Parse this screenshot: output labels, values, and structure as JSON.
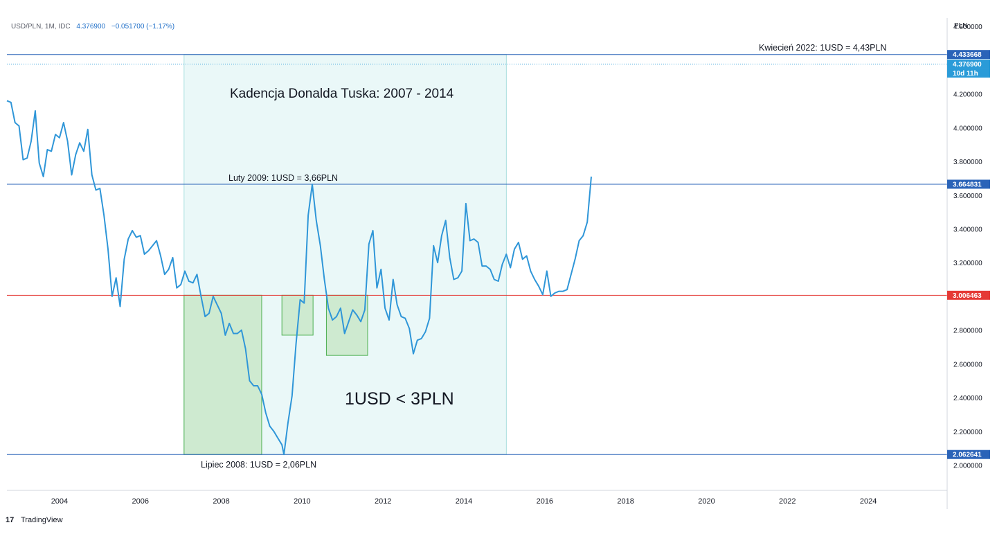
{
  "header": {
    "symbol": "USD/PLN, 1M, IDC",
    "last": "4.376900",
    "change": "−0.051700 (−1.17%)"
  },
  "axis": {
    "unit_label": "PLN"
  },
  "brand": {
    "name": "TradingView"
  },
  "colors": {
    "line": "#2f96d8",
    "hline_blue": "#2a63b8",
    "hline_red": "#e53935",
    "zone_fill": "#eaf8f8",
    "zone_border": "#a8dede",
    "box_fill": "#c9e8c9",
    "box_border": "#4caf50",
    "label_blue": "#2a63b8",
    "label_light": "#2a9bd8",
    "label_red": "#e53935"
  },
  "annotations": {
    "tusk": "Kadencja Donalda Tuska: 2007 - 2014",
    "feb2009": "Luty 2009: 1USD = 3,66PLN",
    "jul2008": "Lipiec 2008: 1USD = 2,06PLN",
    "apr2022": "Kwiecień 2022: 1USD = 4,43PLN",
    "below3": "1USD < 3PLN"
  },
  "price_labels": [
    {
      "id": "high",
      "text": "4.433668",
      "value": 4.433668,
      "color": "#2a63b8"
    },
    {
      "id": "last",
      "text": "4.376900",
      "value": 4.3769,
      "color": "#2a9bd8"
    },
    {
      "id": "countdown",
      "text": "10d 11h",
      "value": 4.3769,
      "color": "#2a9bd8"
    },
    {
      "id": "feb",
      "text": "3.664831",
      "value": 3.664831,
      "color": "#2a63b8"
    },
    {
      "id": "three",
      "text": "3.006463",
      "value": 3.006463,
      "color": "#e53935"
    },
    {
      "id": "low",
      "text": "2.062641",
      "value": 2.062641,
      "color": "#2a63b8"
    }
  ],
  "chart_data": {
    "type": "line",
    "title": "USD/PLN, 1M, IDC",
    "ylabel": "PLN",
    "xlim": [
      2002.7,
      2025.95
    ],
    "ylim": [
      1.85,
      4.65
    ],
    "x_ticks": [
      "2004",
      "2006",
      "2008",
      "2010",
      "2012",
      "2014",
      "2016",
      "2018",
      "2020",
      "2022",
      "2024"
    ],
    "y_ticks": [
      "4.600000",
      "4.200000",
      "4.000000",
      "3.800000",
      "3.600000",
      "3.400000",
      "3.200000",
      "3.000000",
      "2.800000",
      "2.600000",
      "2.400000",
      "2.200000",
      "2.000000"
    ],
    "horizontal_lines": [
      {
        "value": 4.433668,
        "color": "#2a63b8",
        "style": "solid"
      },
      {
        "value": 4.3769,
        "color": "#2a9bd8",
        "style": "dotted"
      },
      {
        "value": 3.664831,
        "color": "#2a63b8",
        "style": "solid"
      },
      {
        "value": 3.006463,
        "color": "#e53935",
        "style": "solid"
      },
      {
        "value": 2.062641,
        "color": "#2a63b8",
        "style": "solid"
      }
    ],
    "shaded_ranges": [
      {
        "x0": 2007.08,
        "x1": 2015.05,
        "y0": 2.062641,
        "y1": 4.433668
      }
    ],
    "boxes": [
      {
        "x0": 2007.08,
        "x1": 2009.0,
        "y0": 2.062641,
        "y1": 3.006463
      },
      {
        "x0": 2009.5,
        "x1": 2010.27,
        "y0": 2.77,
        "y1": 3.006463
      },
      {
        "x0": 2010.6,
        "x1": 2011.62,
        "y0": 2.65,
        "y1": 3.006463
      }
    ],
    "series": [
      {
        "points": [
          [
            2002.7,
            4.16
          ],
          [
            2002.8,
            4.15
          ],
          [
            2002.9,
            4.03
          ],
          [
            2003.0,
            4.01
          ],
          [
            2003.1,
            3.81
          ],
          [
            2003.2,
            3.82
          ],
          [
            2003.3,
            3.92
          ],
          [
            2003.4,
            4.1
          ],
          [
            2003.5,
            3.79
          ],
          [
            2003.6,
            3.71
          ],
          [
            2003.7,
            3.87
          ],
          [
            2003.8,
            3.86
          ],
          [
            2003.9,
            3.96
          ],
          [
            2004.0,
            3.94
          ],
          [
            2004.1,
            4.03
          ],
          [
            2004.2,
            3.92
          ],
          [
            2004.3,
            3.72
          ],
          [
            2004.4,
            3.84
          ],
          [
            2004.5,
            3.91
          ],
          [
            2004.6,
            3.86
          ],
          [
            2004.7,
            3.99
          ],
          [
            2004.8,
            3.72
          ],
          [
            2004.9,
            3.63
          ],
          [
            2005.0,
            3.64
          ],
          [
            2005.1,
            3.48
          ],
          [
            2005.2,
            3.28
          ],
          [
            2005.3,
            3.0
          ],
          [
            2005.4,
            3.11
          ],
          [
            2005.5,
            2.94
          ],
          [
            2005.6,
            3.22
          ],
          [
            2005.7,
            3.34
          ],
          [
            2005.8,
            3.39
          ],
          [
            2005.9,
            3.35
          ],
          [
            2006.0,
            3.36
          ],
          [
            2006.1,
            3.25
          ],
          [
            2006.2,
            3.27
          ],
          [
            2006.3,
            3.3
          ],
          [
            2006.4,
            3.33
          ],
          [
            2006.5,
            3.24
          ],
          [
            2006.6,
            3.13
          ],
          [
            2006.7,
            3.16
          ],
          [
            2006.8,
            3.23
          ],
          [
            2006.9,
            3.05
          ],
          [
            2007.0,
            3.07
          ],
          [
            2007.1,
            3.15
          ],
          [
            2007.2,
            3.09
          ],
          [
            2007.3,
            3.08
          ],
          [
            2007.4,
            3.13
          ],
          [
            2007.5,
            3.0
          ],
          [
            2007.6,
            2.88
          ],
          [
            2007.7,
            2.9
          ],
          [
            2007.8,
            3.0
          ],
          [
            2007.9,
            2.95
          ],
          [
            2008.0,
            2.9
          ],
          [
            2008.1,
            2.77
          ],
          [
            2008.2,
            2.84
          ],
          [
            2008.3,
            2.78
          ],
          [
            2008.4,
            2.78
          ],
          [
            2008.5,
            2.8
          ],
          [
            2008.6,
            2.69
          ],
          [
            2008.7,
            2.5
          ],
          [
            2008.8,
            2.47
          ],
          [
            2008.9,
            2.47
          ],
          [
            2009.0,
            2.42
          ],
          [
            2009.1,
            2.31
          ],
          [
            2009.2,
            2.23
          ],
          [
            2009.3,
            2.2
          ],
          [
            2009.4,
            2.16
          ],
          [
            2009.5,
            2.12
          ],
          [
            2009.55,
            2.062641
          ],
          [
            2009.65,
            2.25
          ],
          [
            2009.75,
            2.41
          ],
          [
            2009.85,
            2.72
          ],
          [
            2009.95,
            2.98
          ],
          [
            2010.05,
            2.96
          ],
          [
            2010.15,
            3.48
          ],
          [
            2010.25,
            3.664831
          ],
          [
            2010.35,
            3.45
          ],
          [
            2010.45,
            3.3
          ],
          [
            2010.55,
            3.1
          ],
          [
            2010.65,
            2.93
          ],
          [
            2010.75,
            2.86
          ],
          [
            2010.85,
            2.88
          ],
          [
            2010.95,
            2.93
          ],
          [
            2011.05,
            2.78
          ],
          [
            2011.15,
            2.85
          ],
          [
            2011.25,
            2.92
          ],
          [
            2011.35,
            2.89
          ],
          [
            2011.45,
            2.85
          ],
          [
            2011.55,
            2.92
          ],
          [
            2011.65,
            3.31
          ],
          [
            2011.75,
            3.39
          ],
          [
            2011.85,
            3.05
          ],
          [
            2011.95,
            3.16
          ],
          [
            2012.05,
            2.93
          ],
          [
            2012.15,
            2.86
          ],
          [
            2012.25,
            3.1
          ],
          [
            2012.35,
            2.95
          ],
          [
            2012.45,
            2.88
          ],
          [
            2012.55,
            2.87
          ],
          [
            2012.65,
            2.81
          ],
          [
            2012.75,
            2.66
          ],
          [
            2012.85,
            2.74
          ],
          [
            2012.95,
            2.75
          ],
          [
            2013.05,
            2.79
          ],
          [
            2013.15,
            2.87
          ],
          [
            2013.25,
            3.3
          ],
          [
            2013.35,
            3.2
          ],
          [
            2013.45,
            3.36
          ],
          [
            2013.55,
            3.45
          ],
          [
            2013.65,
            3.23
          ],
          [
            2013.75,
            3.1
          ],
          [
            2013.85,
            3.11
          ],
          [
            2013.95,
            3.15
          ],
          [
            2014.05,
            3.55
          ],
          [
            2014.15,
            3.33
          ],
          [
            2014.25,
            3.34
          ],
          [
            2014.35,
            3.32
          ],
          [
            2014.45,
            3.18
          ],
          [
            2014.55,
            3.18
          ],
          [
            2014.65,
            3.16
          ],
          [
            2014.75,
            3.1
          ],
          [
            2014.85,
            3.09
          ],
          [
            2014.95,
            3.19
          ],
          [
            2015.05,
            3.25
          ],
          [
            2015.15,
            3.17
          ],
          [
            2015.25,
            3.28
          ],
          [
            2015.35,
            3.32
          ],
          [
            2015.45,
            3.22
          ],
          [
            2015.55,
            3.24
          ],
          [
            2015.65,
            3.15
          ],
          [
            2015.75,
            3.1
          ],
          [
            2015.85,
            3.06
          ],
          [
            2015.95,
            3.01
          ],
          [
            2016.05,
            3.15
          ],
          [
            2016.15,
            3.0
          ],
          [
            2016.25,
            3.02
          ],
          [
            2016.35,
            3.03
          ],
          [
            2016.45,
            3.03
          ],
          [
            2016.55,
            3.04
          ],
          [
            2016.65,
            3.13
          ],
          [
            2016.75,
            3.22
          ],
          [
            2016.85,
            3.33
          ],
          [
            2016.95,
            3.36
          ],
          [
            2017.05,
            3.44
          ],
          [
            2017.15,
            3.71
          ]
        ]
      }
    ]
  }
}
